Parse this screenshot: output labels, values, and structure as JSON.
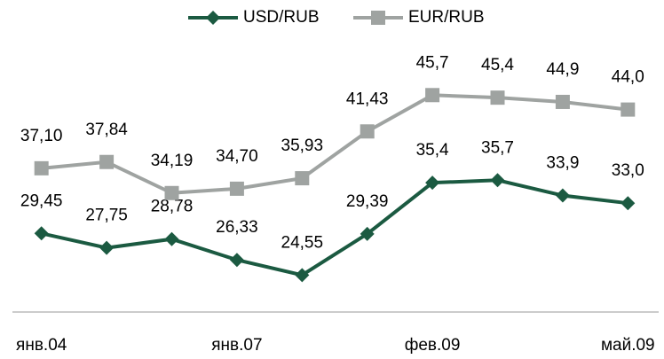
{
  "chart_data": {
    "type": "line",
    "categories": [
      "янв.04",
      null,
      null,
      "янв.07",
      null,
      null,
      "фев.09",
      null,
      null,
      "май.09"
    ],
    "series": [
      {
        "name": "USD/RUB",
        "color": "#1b5a41",
        "marker": "diamond",
        "values": [
          29.45,
          27.75,
          28.78,
          26.33,
          24.55,
          29.39,
          35.4,
          35.7,
          33.9,
          33.0
        ],
        "value_labels": [
          "29,45",
          "27,75",
          "28,78",
          "26,33",
          "24,55",
          "29,39",
          "35,4",
          "35,7",
          "33,9",
          "33,0"
        ]
      },
      {
        "name": "EUR/RUB",
        "color": "#9fa3a1",
        "marker": "square",
        "values": [
          37.1,
          37.84,
          34.19,
          34.7,
          35.93,
          41.43,
          45.7,
          45.4,
          44.9,
          44.0
        ],
        "value_labels": [
          "37,10",
          "37,84",
          "34,19",
          "34,70",
          "35,93",
          "41,43",
          "45,7",
          "45,4",
          "44,9",
          "44,0"
        ]
      }
    ],
    "ylim": [
      20,
      50
    ],
    "legend": "top"
  }
}
